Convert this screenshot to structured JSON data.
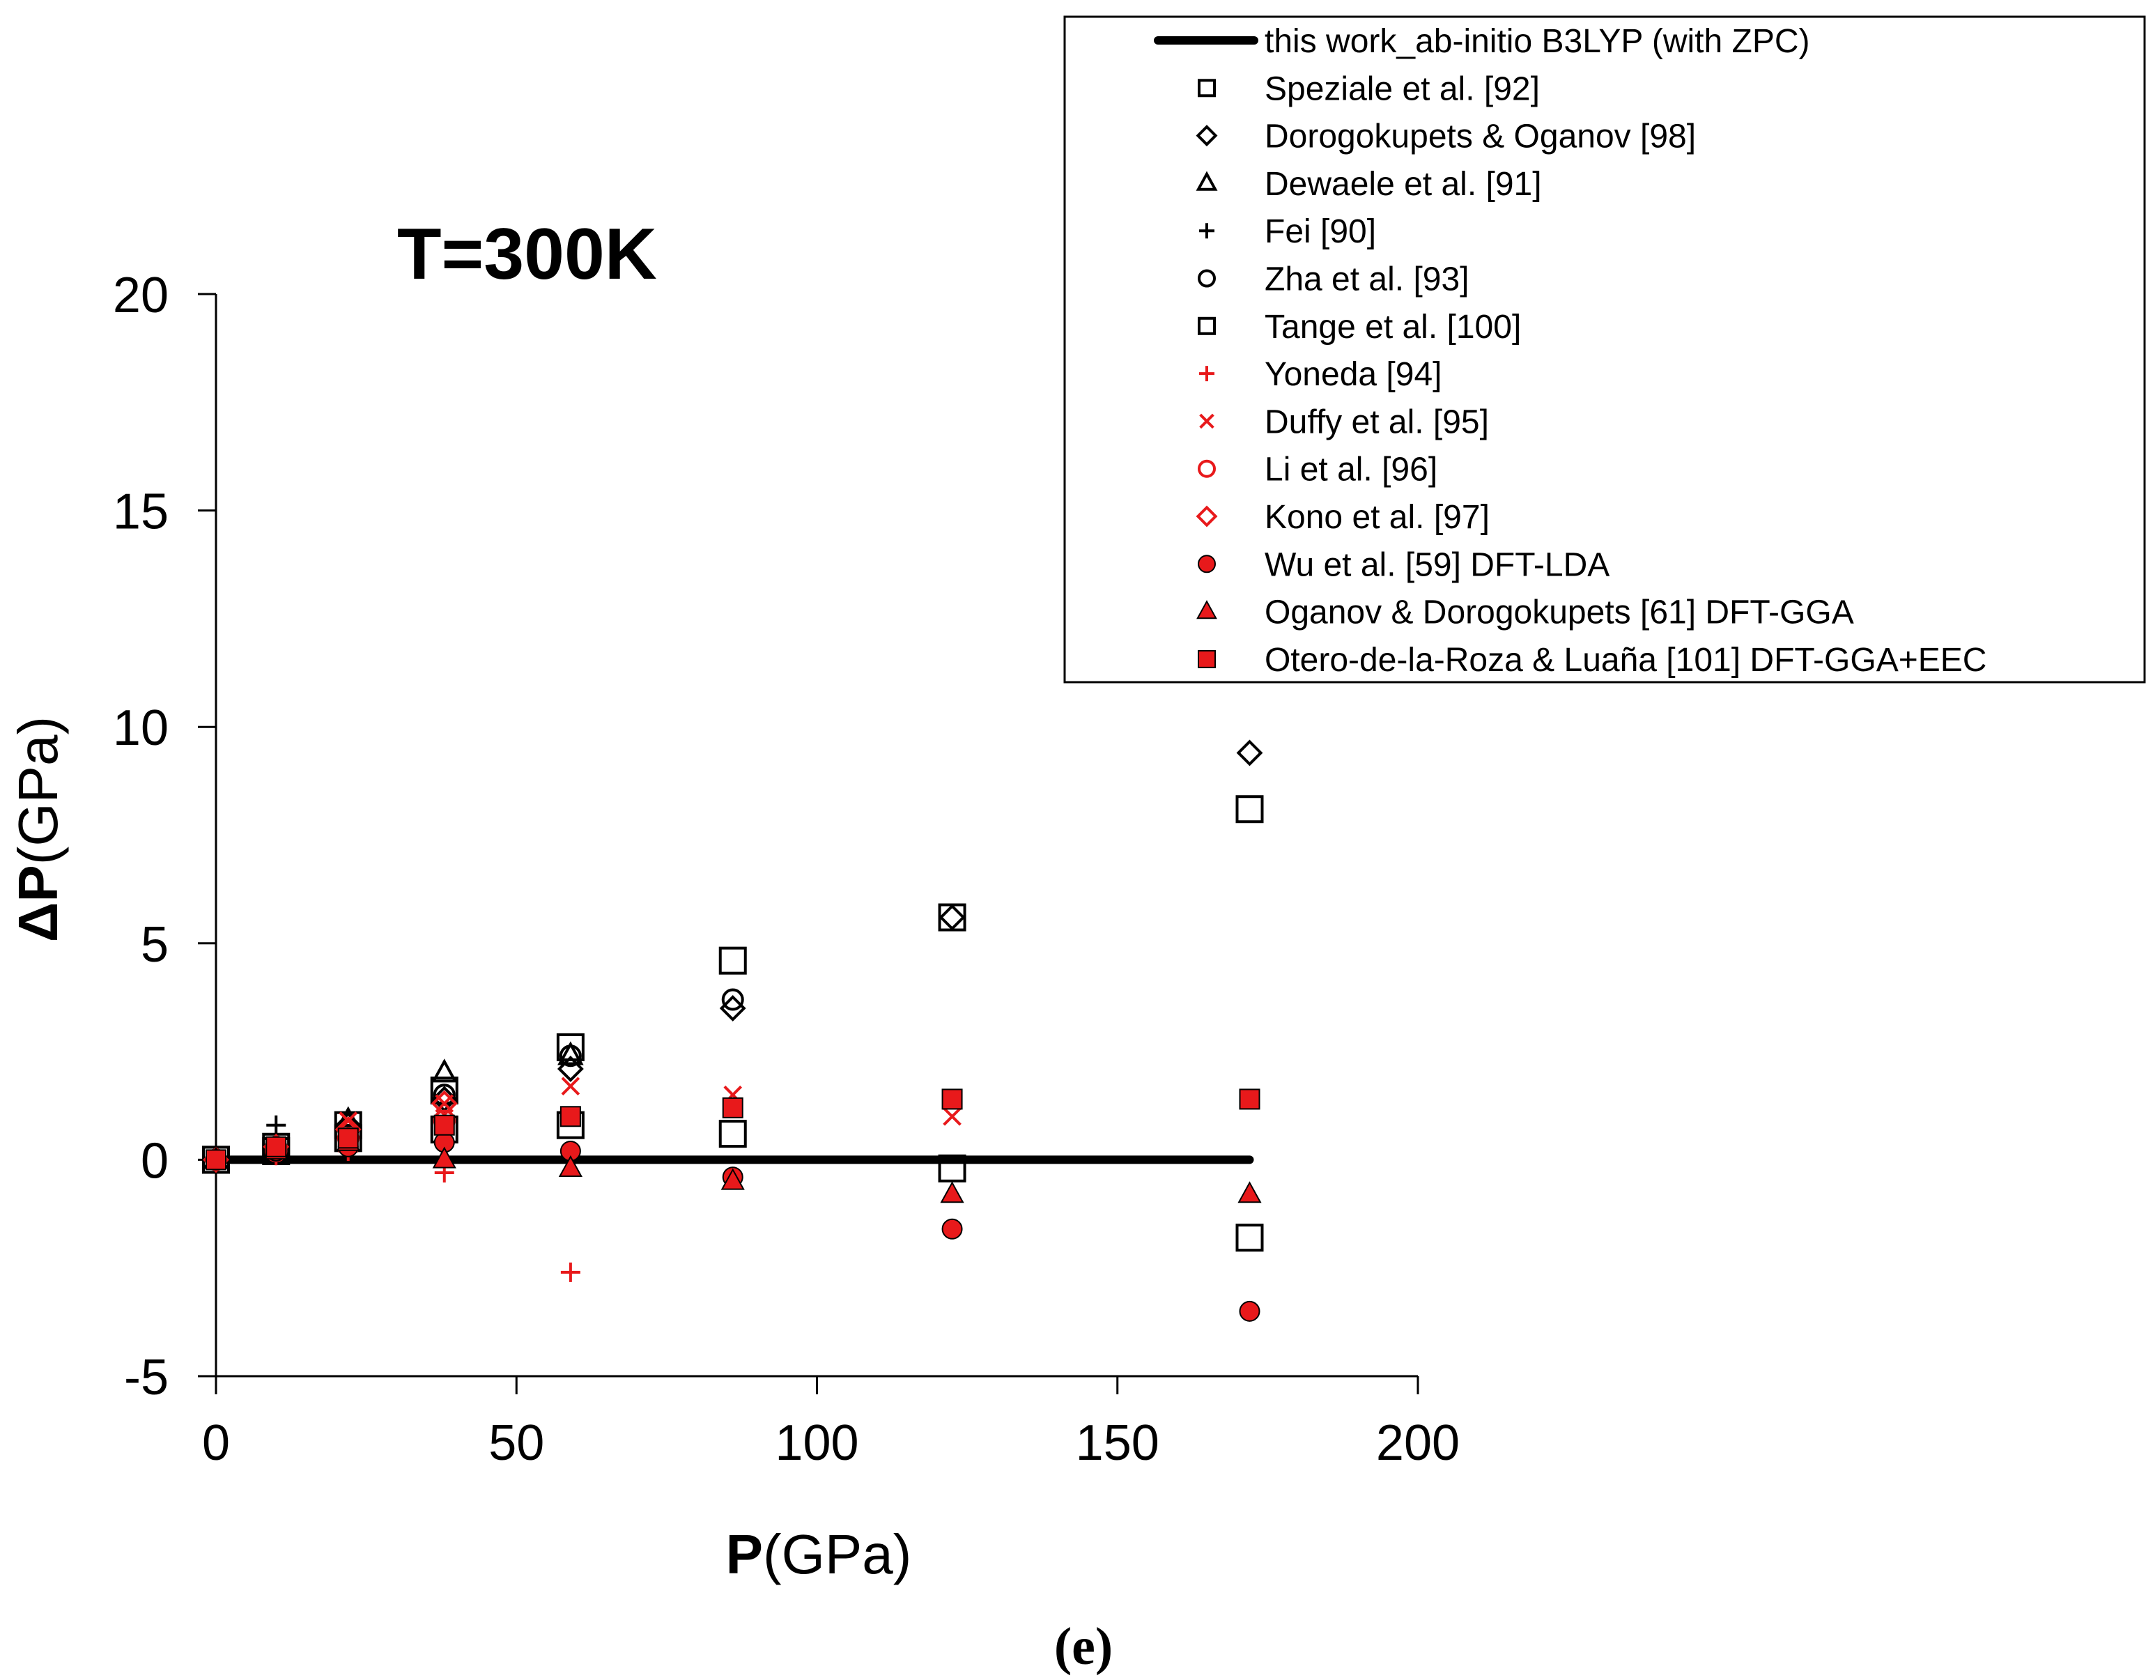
{
  "chart_data": {
    "type": "scatter",
    "title": "T=300K",
    "xlabel_bold": "P",
    "xlabel_rest": "(GPa)",
    "ylabel_bold": "ΔP",
    "ylabel_rest": "(GPa)",
    "caption": "(e)",
    "xlim": [
      0,
      200
    ],
    "ylim": [
      -5,
      20
    ],
    "xticks": [
      0,
      50,
      100,
      150,
      200
    ],
    "yticks": [
      -5,
      0,
      5,
      10,
      15,
      20
    ],
    "legend_position": "top-right",
    "series": [
      {
        "name": "this work_ab-initio B3LYP (with ZPC)",
        "kind": "line",
        "color": "#000000",
        "points": [
          [
            0,
            0
          ],
          [
            172,
            0
          ]
        ]
      },
      {
        "name": "Speziale et al. [92]",
        "marker": "square",
        "color": "#000000",
        "filled": false,
        "points": [
          [
            0,
            0
          ],
          [
            10,
            0.3
          ],
          [
            22,
            0.8
          ],
          [
            38,
            1.6
          ],
          [
            59,
            2.6
          ],
          [
            86,
            4.6
          ],
          [
            122.5,
            5.6
          ],
          [
            172,
            8.1
          ]
        ]
      },
      {
        "name": "Dorogokupets & Oganov [98]",
        "marker": "diamond",
        "color": "#000000",
        "filled": false,
        "points": [
          [
            0,
            0
          ],
          [
            10,
            0.3
          ],
          [
            22,
            0.8
          ],
          [
            38,
            1.4
          ],
          [
            59,
            2.1
          ],
          [
            86,
            3.5
          ],
          [
            122.5,
            5.6
          ],
          [
            172,
            9.4
          ]
        ]
      },
      {
        "name": "Dewaele et al. [91]",
        "marker": "triangle",
        "color": "#000000",
        "filled": false,
        "points": [
          [
            0,
            0
          ],
          [
            10,
            0.3
          ],
          [
            22,
            0.9
          ],
          [
            38,
            2.0
          ],
          [
            59,
            2.4
          ]
        ]
      },
      {
        "name": "Fei [90]",
        "marker": "plus",
        "color": "#000000",
        "filled": false,
        "points": [
          [
            0,
            0
          ],
          [
            10,
            0.8
          ],
          [
            22,
            0.6
          ],
          [
            38,
            0.9
          ]
        ]
      },
      {
        "name": "Zha et al. [93]",
        "marker": "circle",
        "color": "#000000",
        "filled": false,
        "points": [
          [
            0,
            0
          ],
          [
            10,
            0.3
          ],
          [
            22,
            0.7
          ],
          [
            38,
            1.5
          ],
          [
            59,
            2.4
          ],
          [
            86,
            3.7
          ]
        ]
      },
      {
        "name": "Tange et al. [100]",
        "marker": "square",
        "color": "#000000",
        "filled": false,
        "points": [
          [
            0,
            0
          ],
          [
            10,
            0.2
          ],
          [
            22,
            0.5
          ],
          [
            38,
            0.7
          ],
          [
            59,
            0.8
          ],
          [
            86,
            0.6
          ],
          [
            122.5,
            -0.2
          ],
          [
            172,
            -1.8
          ]
        ]
      },
      {
        "name": "Yoneda [94]",
        "marker": "plus",
        "color": "#e8191b",
        "filled": false,
        "points": [
          [
            0,
            0
          ],
          [
            10,
            0.1
          ],
          [
            22,
            0.2
          ],
          [
            38,
            -0.3
          ],
          [
            59,
            -2.6
          ]
        ]
      },
      {
        "name": "Duffy et al. [95]",
        "marker": "x",
        "color": "#e8191b",
        "filled": false,
        "points": [
          [
            0,
            0
          ],
          [
            10,
            0.3
          ],
          [
            22,
            0.9
          ],
          [
            38,
            1.3
          ],
          [
            59,
            1.7
          ],
          [
            86,
            1.5
          ],
          [
            122.5,
            1.0
          ]
        ]
      },
      {
        "name": "Li et al. [96]",
        "marker": "circle",
        "color": "#e8191b",
        "filled": false,
        "points": [
          [
            0,
            0
          ],
          [
            10,
            0.2
          ],
          [
            22,
            0.5
          ],
          [
            38,
            0.9
          ]
        ]
      },
      {
        "name": "Kono et al. [97]",
        "marker": "diamond",
        "color": "#e8191b",
        "filled": false,
        "points": [
          [
            0,
            0
          ],
          [
            10,
            0.3
          ],
          [
            22,
            0.7
          ],
          [
            38,
            1.3
          ]
        ]
      },
      {
        "name": "Wu et al. [59] DFT-LDA",
        "marker": "circle",
        "color": "#e8191b",
        "filled": true,
        "points": [
          [
            0,
            0
          ],
          [
            10,
            0.2
          ],
          [
            22,
            0.3
          ],
          [
            38,
            0.4
          ],
          [
            59,
            0.2
          ],
          [
            86,
            -0.4
          ],
          [
            122.5,
            -1.6
          ],
          [
            172,
            -3.5
          ]
        ]
      },
      {
        "name": "Oganov & Dorogokupets [61] DFT-GGA",
        "marker": "triangle",
        "color": "#e8191b",
        "filled": true,
        "points": [
          [
            0,
            0
          ],
          [
            10,
            0.2
          ],
          [
            22,
            0.4
          ],
          [
            38,
            0.0
          ],
          [
            59,
            -0.2
          ],
          [
            86,
            -0.5
          ],
          [
            122.5,
            -0.8
          ],
          [
            172,
            -0.8
          ]
        ]
      },
      {
        "name": "Otero-de-la-Roza & Luaña [101] DFT-GGA+EEC",
        "marker": "square",
        "color": "#e8191b",
        "filled": true,
        "points": [
          [
            0,
            0
          ],
          [
            10,
            0.3
          ],
          [
            22,
            0.5
          ],
          [
            38,
            0.8
          ],
          [
            59,
            1.0
          ],
          [
            86,
            1.2
          ],
          [
            122.5,
            1.4
          ],
          [
            172,
            1.4
          ]
        ]
      }
    ]
  }
}
